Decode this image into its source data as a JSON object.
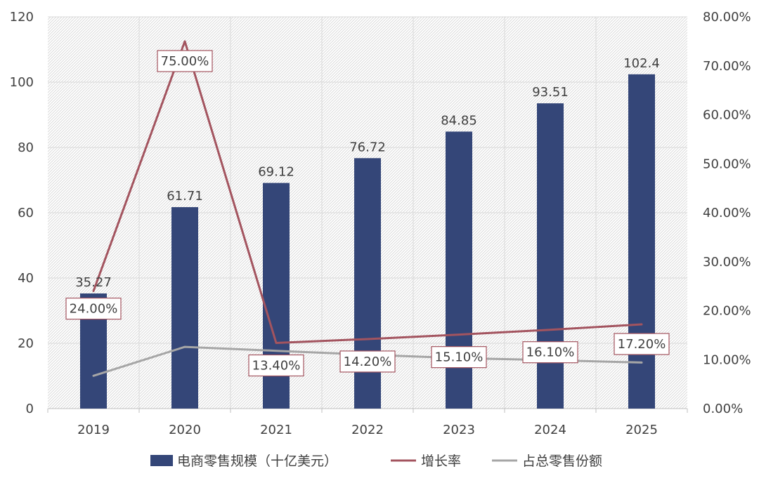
{
  "chart_data": {
    "type": "bar",
    "categories": [
      "2019",
      "2020",
      "2021",
      "2022",
      "2023",
      "2024",
      "2025"
    ],
    "series": [
      {
        "name": "电商零售规模（十亿美元）",
        "kind": "bar",
        "axis": "left",
        "color": "#344678",
        "values": [
          35.27,
          61.71,
          69.12,
          76.72,
          84.85,
          93.51,
          102.4
        ],
        "labels": [
          "35.27",
          "61.71",
          "69.12",
          "76.72",
          "84.85",
          "93.51",
          "102.4"
        ]
      },
      {
        "name": "增长率",
        "kind": "line",
        "axis": "right",
        "color": "#A3545F",
        "values": [
          24.0,
          75.0,
          13.4,
          14.2,
          15.1,
          16.1,
          17.2
        ],
        "labels": [
          "24.00%",
          "75.00%",
          "13.40%",
          "14.20%",
          "15.10%",
          "16.10%",
          "17.20%"
        ]
      },
      {
        "name": "占总零售份额",
        "kind": "line",
        "axis": "right",
        "color": "#A6A6A6",
        "values": [
          6.7,
          12.6,
          11.8,
          11.0,
          10.3,
          9.9,
          9.4
        ]
      }
    ],
    "y_left": {
      "ylim": [
        0,
        120
      ],
      "ticks": [
        0,
        20,
        40,
        60,
        80,
        100,
        120
      ],
      "tick_labels": [
        "0",
        "20",
        "40",
        "60",
        "80",
        "100",
        "120"
      ]
    },
    "y_right": {
      "ylim": [
        0,
        80
      ],
      "ticks": [
        0,
        10,
        20,
        30,
        40,
        50,
        60,
        70,
        80
      ],
      "tick_labels": [
        "0.00%",
        "10.00%",
        "20.00%",
        "30.00%",
        "40.00%",
        "50.00%",
        "60.00%",
        "70.00%",
        "80.00%"
      ]
    },
    "grid": true,
    "legend_position": "bottom"
  }
}
